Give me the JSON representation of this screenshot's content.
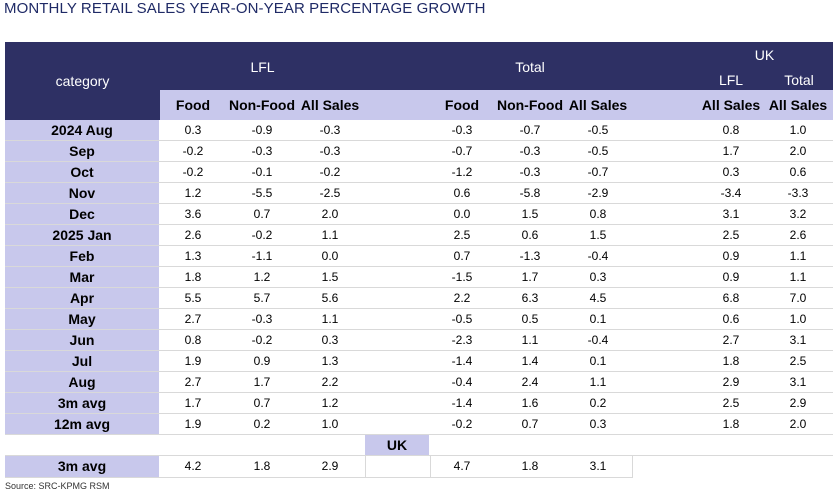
{
  "title": "MONTHLY RETAIL SALES YEAR-ON-YEAR PERCENTAGE GROWTH",
  "header": {
    "category": "category",
    "lfl": "LFL",
    "total": "Total",
    "uk": "UK",
    "uk_lfl": "LFL",
    "uk_total": "Total"
  },
  "subheader": [
    "Food",
    "Non-Food",
    "All Sales",
    "Food",
    "Non-Food",
    "All Sales",
    "All Sales",
    "All Sales"
  ],
  "rows": [
    {
      "label": "2024 Aug",
      "values": [
        "0.3",
        "-0.9",
        "-0.3",
        "-0.3",
        "-0.7",
        "-0.5",
        "0.8",
        "1.0"
      ]
    },
    {
      "label": "Sep",
      "values": [
        "-0.2",
        "-0.3",
        "-0.3",
        "-0.7",
        "-0.3",
        "-0.5",
        "1.7",
        "2.0"
      ]
    },
    {
      "label": "Oct",
      "values": [
        "-0.2",
        "-0.1",
        "-0.2",
        "-1.2",
        "-0.3",
        "-0.7",
        "0.3",
        "0.6"
      ]
    },
    {
      "label": "Nov",
      "values": [
        "1.2",
        "-5.5",
        "-2.5",
        "0.6",
        "-5.8",
        "-2.9",
        "-3.4",
        "-3.3"
      ]
    },
    {
      "label": "Dec",
      "values": [
        "3.6",
        "0.7",
        "2.0",
        "0.0",
        "1.5",
        "0.8",
        "3.1",
        "3.2"
      ]
    },
    {
      "label": "2025 Jan",
      "values": [
        "2.6",
        "-0.2",
        "1.1",
        "2.5",
        "0.6",
        "1.5",
        "2.5",
        "2.6"
      ]
    },
    {
      "label": "Feb",
      "values": [
        "1.3",
        "-1.1",
        "0.0",
        "0.7",
        "-1.3",
        "-0.4",
        "0.9",
        "1.1"
      ]
    },
    {
      "label": "Mar",
      "values": [
        "1.8",
        "1.2",
        "1.5",
        "-1.5",
        "1.7",
        "0.3",
        "0.9",
        "1.1"
      ]
    },
    {
      "label": "Apr",
      "values": [
        "5.5",
        "5.7",
        "5.6",
        "2.2",
        "6.3",
        "4.5",
        "6.8",
        "7.0"
      ]
    },
    {
      "label": "May",
      "values": [
        "2.7",
        "-0.3",
        "1.1",
        "-0.5",
        "0.5",
        "0.1",
        "0.6",
        "1.0"
      ]
    },
    {
      "label": "Jun",
      "values": [
        "0.8",
        "-0.2",
        "0.3",
        "-2.3",
        "1.1",
        "-0.4",
        "2.7",
        "3.1"
      ]
    },
    {
      "label": "Jul",
      "values": [
        "1.9",
        "0.9",
        "1.3",
        "-1.4",
        "1.4",
        "0.1",
        "1.8",
        "2.5"
      ]
    },
    {
      "label": "Aug",
      "values": [
        "2.7",
        "1.7",
        "2.2",
        "-0.4",
        "2.4",
        "1.1",
        "2.9",
        "3.1"
      ]
    },
    {
      "label": "3m avg",
      "values": [
        "1.7",
        "0.7",
        "1.2",
        "-1.4",
        "1.6",
        "0.2",
        "2.5",
        "2.9"
      ]
    },
    {
      "label": "12m avg",
      "values": [
        "1.9",
        "0.2",
        "1.0",
        "-0.2",
        "0.7",
        "0.3",
        "1.8",
        "2.0"
      ]
    }
  ],
  "uk_section": {
    "label": "UK",
    "row": {
      "label": "3m avg",
      "values": [
        "4.2",
        "1.8",
        "2.9",
        "4.7",
        "1.8",
        "3.1"
      ]
    }
  },
  "source": "Source: SRC-KPMG RSM"
}
